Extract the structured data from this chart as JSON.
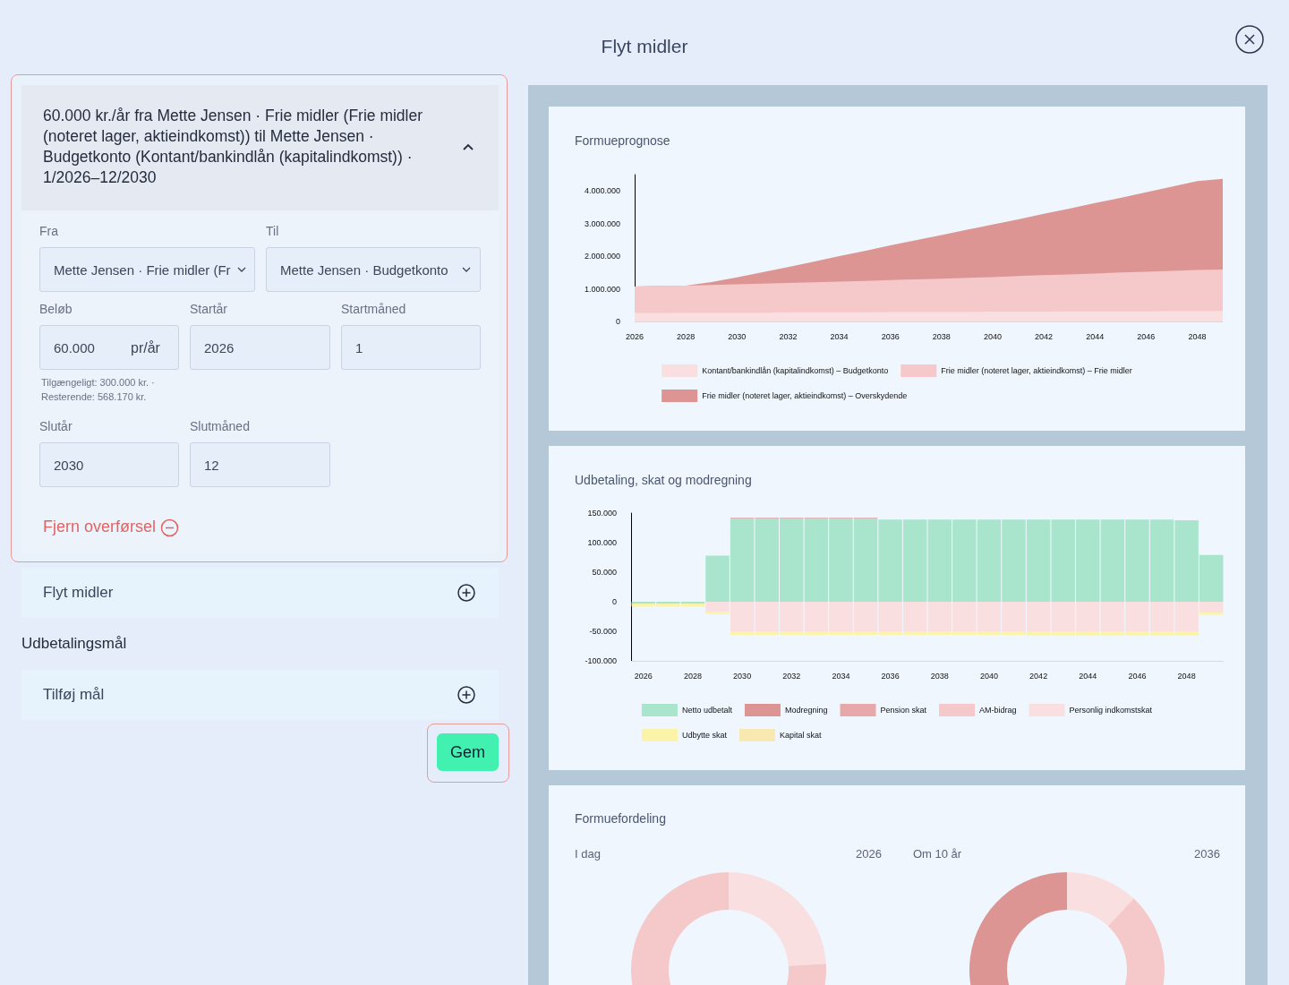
{
  "chart_data": [
    {
      "type": "other",
      "title": "Flyt midler",
      "annotations": [
        "60.000 kr./år fra Mette Jensen · Frie midler (Frie midler (noteret lager, aktieindkomst)) til Mette Jensen · Budgetkonto (Kontant/bankindlån (kapitalindkomst)) · 1/2026–12/2030",
        "Fra",
        "Til",
        "Mette Jensen · Frie midler (Fr",
        "Mette Jensen · Budgetkonto",
        "Beløb",
        "Startår",
        "Startmåned",
        "60.000",
        "pr/år",
        "2026",
        "1",
        "Tilgængeligt: 300.000 kr. · Resterende: 568.170 kr.",
        "Slutår",
        "Slutmåned",
        "2030",
        "12",
        "Fjern overførsel",
        "Flyt midler",
        "Udbetalingsmål",
        "Tilføj mål",
        "Gem"
      ]
    },
    {
      "type": "area",
      "title": "Formueprognose",
      "stacked": true,
      "legend": "bottom",
      "x": [
        2026,
        2027,
        2028,
        2029,
        2030,
        2031,
        2032,
        2033,
        2034,
        2035,
        2036,
        2037,
        2038,
        2039,
        2040,
        2041,
        2042,
        2043,
        2044,
        2045,
        2046,
        2047,
        2048,
        2049
      ],
      "xlim": [
        2026,
        2049
      ],
      "xticks": [
        2026,
        2028,
        2030,
        2032,
        2034,
        2036,
        2038,
        2040,
        2042,
        2044,
        2046,
        2048
      ],
      "ylim": [
        0,
        4500000
      ],
      "yticks": [
        {
          "value": 0,
          "label": "0"
        },
        {
          "value": 1000000,
          "label": "1.000.000"
        },
        {
          "value": 2000000,
          "label": "2.000.000"
        },
        {
          "value": 3000000,
          "label": "3.000.000"
        },
        {
          "value": 4000000,
          "label": "4.000.000"
        }
      ],
      "series": [
        {
          "name": "Kontant/bankindlån (kapitalindkomst) – Budgetkonto",
          "color": "#f9dfe0",
          "values": [
            260000,
            260000,
            270000,
            270000,
            270000,
            270000,
            280000,
            280000,
            280000,
            280000,
            290000,
            290000,
            290000,
            290000,
            300000,
            300000,
            300000,
            310000,
            310000,
            310000,
            310000,
            320000,
            320000,
            320000
          ]
        },
        {
          "name": "Frie midler (noteret lager, aktieindkomst) – Frie midler",
          "color": "#f5c9ca",
          "values": [
            810000,
            830000,
            830000,
            850000,
            870000,
            890000,
            900000,
            920000,
            940000,
            960000,
            980000,
            1000000,
            1020000,
            1050000,
            1060000,
            1090000,
            1120000,
            1130000,
            1160000,
            1190000,
            1210000,
            1230000,
            1260000,
            1270000
          ]
        },
        {
          "name": "Frie midler (noteret lager, aktieindkomst) – Overskydende",
          "color": "#dd9593",
          "values": [
            0,
            0,
            0,
            90000,
            210000,
            350000,
            490000,
            630000,
            780000,
            920000,
            1060000,
            1200000,
            1340000,
            1470000,
            1610000,
            1740000,
            1880000,
            2020000,
            2160000,
            2290000,
            2440000,
            2580000,
            2720000,
            2780000
          ]
        }
      ]
    },
    {
      "type": "bar",
      "title": "Udbetaling, skat og modregning",
      "stacked": true,
      "legend": "bottom",
      "categories": [
        "2026",
        null,
        "2028",
        null,
        "2030",
        null,
        "2032",
        null,
        "2034",
        null,
        "2036",
        null,
        "2038",
        null,
        "2040",
        null,
        "2042",
        null,
        "2044",
        null,
        "2046",
        null,
        "2048",
        null
      ],
      "ylim": [
        -100000,
        150000
      ],
      "yticks": [
        {
          "value": -100000,
          "label": "-100.000"
        },
        {
          "value": -50000,
          "label": "-50.000"
        },
        {
          "value": 0,
          "label": "0"
        },
        {
          "value": 50000,
          "label": "50.000"
        },
        {
          "value": 100000,
          "label": "100.000"
        },
        {
          "value": 150000,
          "label": "150.000"
        }
      ],
      "series": [
        {
          "name": "Netto udbetalt",
          "color": "#a8e5cc",
          "values": [
            -3000,
            -3000,
            -3000,
            78000,
            141000,
            141000,
            141000,
            141000,
            141000,
            141000,
            139000,
            139000,
            139000,
            139000,
            139000,
            139000,
            139000,
            139000,
            139000,
            139000,
            139000,
            139000,
            138000,
            79000
          ]
        },
        {
          "name": "Modregning",
          "color": "#dd9593",
          "values": [
            null,
            null,
            null,
            null,
            1000,
            1000,
            1000,
            1000,
            1000,
            1000,
            null,
            null,
            null,
            null,
            null,
            null,
            null,
            null,
            null,
            null,
            null,
            null,
            null,
            null
          ]
        },
        {
          "name": "Pension skat",
          "color": "#e6a8a8",
          "values": [
            null,
            null,
            null,
            null,
            null,
            null,
            null,
            null,
            null,
            null,
            null,
            null,
            null,
            null,
            null,
            null,
            null,
            null,
            null,
            null,
            null,
            null,
            null,
            null
          ]
        },
        {
          "name": "AM-bidrag",
          "color": "#f5c9ca",
          "values": [
            null,
            null,
            null,
            null,
            null,
            null,
            null,
            null,
            null,
            null,
            null,
            null,
            null,
            null,
            null,
            null,
            null,
            null,
            null,
            null,
            null,
            null,
            null,
            null
          ]
        },
        {
          "name": "Personlig indkomstskat",
          "color": "#f9dfe0",
          "values": [
            null,
            null,
            null,
            -17000,
            -51000,
            -51000,
            -51000,
            -51000,
            -51000,
            -51000,
            -51000,
            -51000,
            -51000,
            -51000,
            -51000,
            -51000,
            -51000,
            -51000,
            -51000,
            -51000,
            -51000,
            -51000,
            -51000,
            -18000
          ]
        },
        {
          "name": "Udbytte skat",
          "color": "#fbf3a7",
          "values": [
            -5000,
            -5000,
            -5000,
            -4000,
            -5000,
            -5000,
            -5000,
            -5000,
            -5000,
            -5000,
            -5000,
            -5000,
            -5000,
            -5000,
            -5000,
            -5000,
            -6000,
            -6000,
            -6000,
            -6000,
            -6000,
            -6000,
            -6000,
            -4000
          ]
        },
        {
          "name": "Kapital skat",
          "color": "#f8e9b0",
          "values": [
            null,
            null,
            null,
            null,
            null,
            null,
            null,
            null,
            null,
            null,
            null,
            null,
            null,
            null,
            null,
            null,
            null,
            null,
            null,
            null,
            null,
            null,
            null,
            null
          ]
        }
      ]
    },
    {
      "type": "donut",
      "title": "Formuefordeling",
      "subtitle": "I dag",
      "annotations": [
        "2026"
      ],
      "categories": [
        null,
        null
      ],
      "values": [
        24,
        76
      ],
      "colors": [
        "#f9dfe0",
        "#f5c9ca"
      ]
    },
    {
      "type": "donut",
      "subtitle": "Om 10 år",
      "annotations": [
        "2036"
      ],
      "categories": [
        null,
        null,
        null
      ],
      "values": [
        12,
        42,
        46
      ],
      "colors": [
        "#f9dfe0",
        "#f5c9ca",
        "#dd9593"
      ]
    }
  ]
}
